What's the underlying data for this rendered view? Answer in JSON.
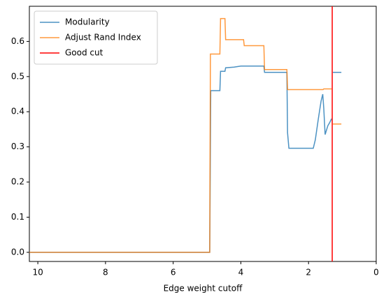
{
  "chart_data": {
    "type": "line",
    "xlabel": "Edge weight cutoff",
    "xlim": [
      10.25,
      0
    ],
    "ylim": [
      -0.026,
      0.7
    ],
    "xticks": [
      10,
      8,
      6,
      4,
      2,
      0
    ],
    "yticks": [
      {
        "value": 0,
        "label": "0.0"
      },
      0.1,
      0.2,
      0.3,
      0.4,
      0.5,
      0.6
    ],
    "grid": false,
    "legend": "upper left",
    "series": [
      {
        "name": "Modularity",
        "color": "#1f77b4",
        "x": [
          10.25,
          4.92,
          4.89,
          4.62,
          4.6,
          4.47,
          4.45,
          4.2,
          4.0,
          3.32,
          3.3,
          2.64,
          2.62,
          2.58,
          1.86,
          1.8,
          1.71,
          1.63,
          1.58,
          1.55,
          1.51,
          1.43,
          1.37,
          1.32,
          1.3,
          1.28,
          1.03
        ],
        "values": [
          0,
          0,
          0.46,
          0.46,
          0.515,
          0.515,
          0.525,
          0.527,
          0.53,
          0.53,
          0.512,
          0.512,
          0.34,
          0.296,
          0.296,
          0.32,
          0.38,
          0.43,
          0.45,
          0.41,
          0.335,
          0.36,
          0.37,
          0.38,
          null,
          0.512,
          0.512
        ]
      },
      {
        "name": "Adjust Rand Index",
        "color": "#ff7f0e",
        "x": [
          10.25,
          4.92,
          4.9,
          4.62,
          4.6,
          4.47,
          4.45,
          3.92,
          3.9,
          3.32,
          3.3,
          2.64,
          2.62,
          1.57,
          1.55,
          1.32,
          1.3,
          1.28,
          1.03
        ],
        "values": [
          0,
          0,
          0.564,
          0.564,
          0.665,
          0.665,
          0.605,
          0.605,
          0.588,
          0.588,
          0.52,
          0.52,
          0.463,
          0.463,
          0.465,
          0.465,
          null,
          0.365,
          0.365
        ]
      }
    ],
    "vline": {
      "name": "Good cut",
      "color": "#ff0000",
      "x": 1.3
    }
  }
}
